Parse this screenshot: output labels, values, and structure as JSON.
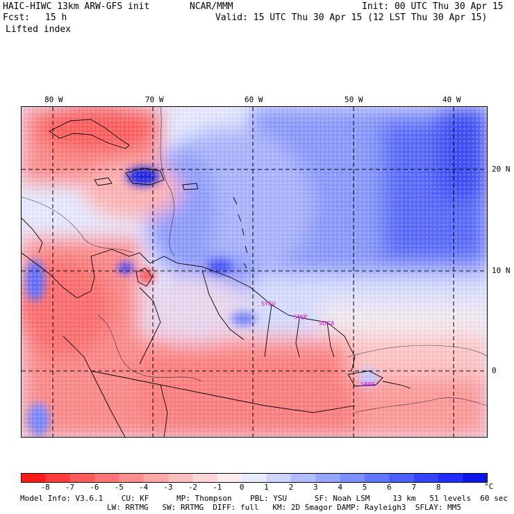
{
  "header": {
    "model": "HAIC-HIWC 13km ARW-GFS init",
    "org": "NCAR/MMM",
    "init": "Init: 00 UTC Thu 30 Apr 15",
    "fcst_label": "Fcst:",
    "fcst_value": "15 h",
    "valid": "Valid: 15 UTC Thu 30 Apr 15 (12 LST Thu 30 Apr 15)",
    "field": "Lifted index"
  },
  "map": {
    "lon_labels": [
      "80 W",
      "70 W",
      "60 W",
      "50 W",
      "40 W"
    ],
    "lat_labels": [
      "20 N",
      "10 N",
      "0"
    ],
    "stations": [
      "SYEU",
      "SMJP",
      "SOCA",
      "SBBE"
    ]
  },
  "colorbar": {
    "labels": [
      "-8",
      "-7",
      "-6",
      "-5",
      "-4",
      "-3",
      "-2",
      "-1",
      "0",
      "1",
      "2",
      "3",
      "4",
      "5",
      "6",
      "7",
      "8"
    ],
    "unit": "°C",
    "colors": [
      "#ff1a1a",
      "#ff3b3b",
      "#ff5a5a",
      "#ff7474",
      "#ff8e8e",
      "#ffa6a6",
      "#ffbebe",
      "#ffd6d6",
      "#ffeded",
      "#e8ebff",
      "#ccd3ff",
      "#b0bcff",
      "#96a6ff",
      "#7c8fff",
      "#6276ff",
      "#4a5eff",
      "#3344ff",
      "#1f2eff",
      "#0a15ee"
    ]
  },
  "footer": {
    "line1": "Model Info: V3.6.1    CU: KF      MP: Thompson    PBL: YSU      SF: Noah LSM     13 km   51 levels  60 sec",
    "line2": "LW: RRTMG   SW: RRTMG  DIFF: full   KM: 2D Smagor DAMP: Rayleigh3  SFLAY: MM5"
  }
}
